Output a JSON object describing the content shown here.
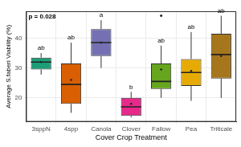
{
  "chart_data": {
    "type": "boxplot",
    "x_label": "Cover Crop Treatment",
    "y_label": "Average S.faberi Viability (%)",
    "annotation": "p = 0.028",
    "categories": [
      "3sppN",
      "4spp",
      "Canola",
      "Clover",
      "Fallow",
      "Pea",
      "Triticale"
    ],
    "colors": [
      "#1b9e77",
      "#d95f02",
      "#7570b3",
      "#e7298a",
      "#66a61e",
      "#e6ab02",
      "#a6761d"
    ],
    "whisker_low": [
      27.8,
      15,
      30,
      13.5,
      20,
      19,
      20
    ],
    "q1": [
      29.5,
      18,
      34,
      14,
      23,
      24,
      26.5
    ],
    "median": [
      32,
      24.5,
      38.5,
      17,
      25.5,
      28.5,
      34.5
    ],
    "q3": [
      33.5,
      31.5,
      43,
      20,
      31.5,
      33,
      41.5
    ],
    "whisker_high": [
      35,
      38.5,
      46,
      22,
      37.5,
      42,
      47.5
    ],
    "mean": [
      32,
      26,
      38.5,
      18,
      29.5,
      29,
      34
    ],
    "outliers": [
      [],
      [],
      [],
      [],
      [
        47.5
      ],
      [],
      []
    ],
    "letters": [
      "ab",
      "ab",
      "a",
      "b",
      "ab",
      "ab",
      "ab"
    ],
    "ylim": [
      12,
      49
    ],
    "yticks": [
      20,
      30,
      40
    ],
    "grid": true
  }
}
